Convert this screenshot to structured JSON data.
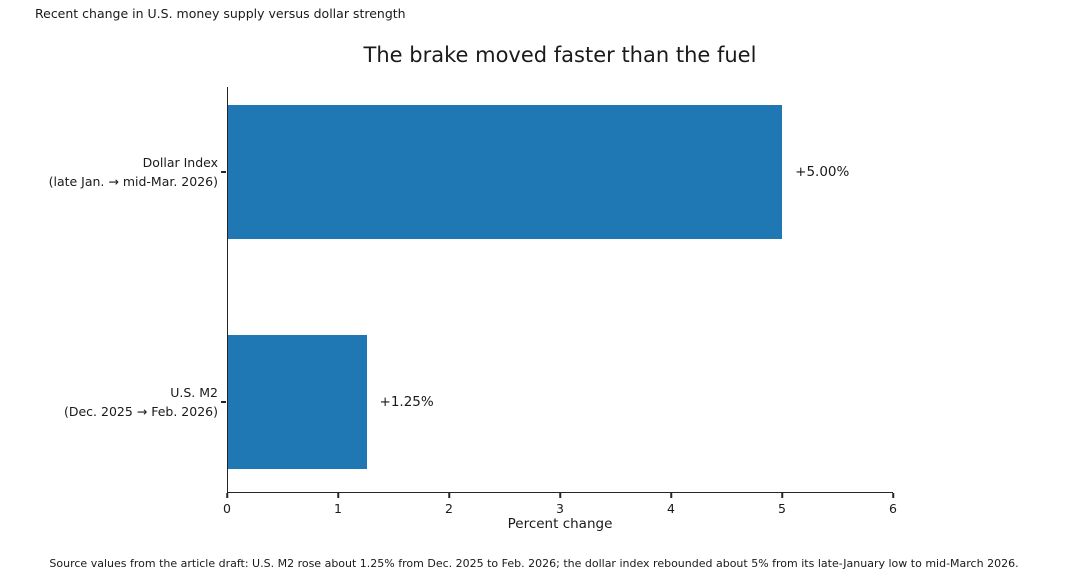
{
  "figure": {
    "suptitle": "Recent change in U.S. money supply versus dollar strength",
    "source_note": "Source values from the article draft: U.S. M2 rose about 1.25% from Dec. 2025 to Feb. 2026; the dollar index rebounded about 5% from its late-January low to mid-March 2026."
  },
  "chart_data": {
    "type": "bar",
    "orientation": "horizontal",
    "title": "The brake moved faster than the fuel",
    "categories": [
      "Dollar Index (late Jan. → mid-Mar. 2026)",
      "U.S. M2 (Dec. 2025 → Feb. 2026)"
    ],
    "values": [
      5.0,
      1.25
    ],
    "bars": [
      {
        "label": "Dollar Index",
        "period": "(late Jan. → mid-Mar. 2026)",
        "value": 5.0,
        "value_label": "+5.00%"
      },
      {
        "label": "U.S. M2",
        "period": "(Dec. 2025 → Feb. 2026)",
        "value": 1.25,
        "value_label": "+1.25%"
      }
    ],
    "xlabel": "Percent change",
    "xlim": [
      0,
      6
    ],
    "xticks": [
      "0",
      "1",
      "2",
      "3",
      "4",
      "5",
      "6"
    ],
    "bar_color": "#1f77b4",
    "grid": false,
    "legend_position": "none"
  }
}
